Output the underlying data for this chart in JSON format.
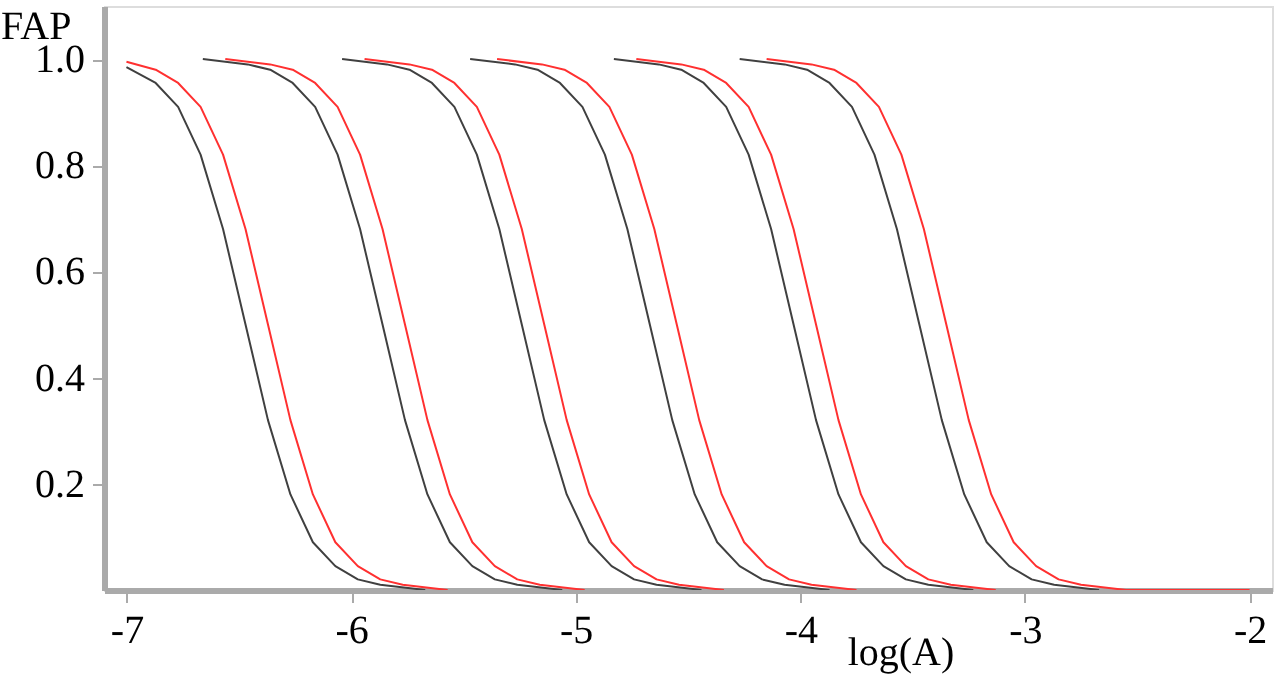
{
  "chart_data": {
    "type": "line",
    "xlabel": "log(A)",
    "ylabel": "FAP",
    "xlim": [
      -7.1,
      -1.9
    ],
    "ylim": [
      0,
      1.1
    ],
    "xticks": [
      -7,
      -6,
      -5,
      -4,
      -3,
      -2
    ],
    "yticks": [
      {
        "value": 0.2,
        "label": "0.2"
      },
      {
        "value": 0.4,
        "label": "0.4"
      },
      {
        "value": 0.6,
        "label": "0.6"
      },
      {
        "value": 0.8,
        "label": "0.8"
      },
      {
        "value": 1,
        "label": "1.0"
      }
    ],
    "grid": false,
    "marker": "none",
    "line_style": "solid",
    "series": [
      {
        "color": "#404040",
        "x": [
          -7,
          -6.87,
          -6.77,
          -6.67,
          -6.57,
          -6.47,
          -6.37,
          -6.27,
          -6.17,
          -6.07,
          -5.97,
          -5.87,
          -5.67
        ],
        "values": [
          0.985,
          0.955,
          0.91,
          0.82,
          0.68,
          0.5,
          0.32,
          0.18,
          0.09,
          0.045,
          0.02,
          0.01,
          0
        ]
      },
      {
        "color": "#ff3030",
        "x": [
          -7,
          -6.87,
          -6.77,
          -6.67,
          -6.57,
          -6.47,
          -6.37,
          -6.27,
          -6.17,
          -6.07,
          -5.97,
          -5.87,
          -5.77,
          -5.57
        ],
        "values": [
          0.995,
          0.98,
          0.955,
          0.91,
          0.82,
          0.68,
          0.5,
          0.32,
          0.18,
          0.09,
          0.045,
          0.02,
          0.01,
          0
        ]
      },
      {
        "color": "#404040",
        "x": [
          -6.66,
          -6.46,
          -6.36,
          -6.26,
          -6.16,
          -6.06,
          -5.96,
          -5.86,
          -5.76,
          -5.66,
          -5.56,
          -5.46,
          -5.36,
          -5.26,
          -5.06
        ],
        "values": [
          1,
          0.99,
          0.98,
          0.955,
          0.91,
          0.82,
          0.68,
          0.5,
          0.32,
          0.18,
          0.09,
          0.045,
          0.02,
          0.01,
          0
        ]
      },
      {
        "color": "#ff3030",
        "x": [
          -6.56,
          -6.36,
          -6.26,
          -6.16,
          -6.06,
          -5.96,
          -5.86,
          -5.76,
          -5.66,
          -5.56,
          -5.46,
          -5.36,
          -5.26,
          -5.16,
          -4.96
        ],
        "values": [
          1,
          0.99,
          0.98,
          0.955,
          0.91,
          0.82,
          0.68,
          0.5,
          0.32,
          0.18,
          0.09,
          0.045,
          0.02,
          0.01,
          0
        ]
      },
      {
        "color": "#404040",
        "x": [
          -6.04,
          -5.84,
          -5.74,
          -5.64,
          -5.54,
          -5.44,
          -5.34,
          -5.24,
          -5.14,
          -5.04,
          -4.94,
          -4.84,
          -4.74,
          -4.64,
          -4.44
        ],
        "values": [
          1,
          0.99,
          0.98,
          0.955,
          0.91,
          0.82,
          0.68,
          0.5,
          0.32,
          0.18,
          0.09,
          0.045,
          0.02,
          0.01,
          0
        ]
      },
      {
        "color": "#ff3030",
        "x": [
          -5.94,
          -5.74,
          -5.64,
          -5.54,
          -5.44,
          -5.34,
          -5.24,
          -5.14,
          -5.04,
          -4.94,
          -4.84,
          -4.74,
          -4.64,
          -4.54,
          -4.34
        ],
        "values": [
          1,
          0.99,
          0.98,
          0.955,
          0.91,
          0.82,
          0.68,
          0.5,
          0.32,
          0.18,
          0.09,
          0.045,
          0.02,
          0.01,
          0
        ]
      },
      {
        "color": "#404040",
        "x": [
          -5.47,
          -5.27,
          -5.17,
          -5.07,
          -4.97,
          -4.87,
          -4.77,
          -4.67,
          -4.57,
          -4.47,
          -4.37,
          -4.27,
          -4.17,
          -4.07,
          -3.87
        ],
        "values": [
          1,
          0.99,
          0.98,
          0.955,
          0.91,
          0.82,
          0.68,
          0.5,
          0.32,
          0.18,
          0.09,
          0.045,
          0.02,
          0.01,
          0
        ]
      },
      {
        "color": "#ff3030",
        "x": [
          -5.35,
          -5.15,
          -5.05,
          -4.95,
          -4.85,
          -4.75,
          -4.65,
          -4.55,
          -4.45,
          -4.35,
          -4.25,
          -4.15,
          -4.05,
          -3.95,
          -3.75
        ],
        "values": [
          1,
          0.99,
          0.98,
          0.955,
          0.91,
          0.82,
          0.68,
          0.5,
          0.32,
          0.18,
          0.09,
          0.045,
          0.02,
          0.01,
          0
        ]
      },
      {
        "color": "#404040",
        "x": [
          -4.83,
          -4.63,
          -4.53,
          -4.43,
          -4.33,
          -4.23,
          -4.13,
          -4.03,
          -3.93,
          -3.83,
          -3.73,
          -3.63,
          -3.53,
          -3.43,
          -3.23
        ],
        "values": [
          1,
          0.99,
          0.98,
          0.955,
          0.91,
          0.82,
          0.68,
          0.5,
          0.32,
          0.18,
          0.09,
          0.045,
          0.02,
          0.01,
          0
        ]
      },
      {
        "color": "#ff3030",
        "x": [
          -4.73,
          -4.53,
          -4.43,
          -4.33,
          -4.23,
          -4.13,
          -4.03,
          -3.93,
          -3.83,
          -3.73,
          -3.63,
          -3.53,
          -3.43,
          -3.33,
          -3.13
        ],
        "values": [
          1,
          0.99,
          0.98,
          0.955,
          0.91,
          0.82,
          0.68,
          0.5,
          0.32,
          0.18,
          0.09,
          0.045,
          0.02,
          0.01,
          0
        ]
      },
      {
        "color": "#404040",
        "x": [
          -4.27,
          -4.07,
          -3.97,
          -3.87,
          -3.77,
          -3.67,
          -3.57,
          -3.47,
          -3.37,
          -3.27,
          -3.17,
          -3.07,
          -2.97,
          -2.87,
          -2.67
        ],
        "values": [
          1,
          0.99,
          0.98,
          0.955,
          0.91,
          0.82,
          0.68,
          0.5,
          0.32,
          0.18,
          0.09,
          0.045,
          0.02,
          0.01,
          0
        ]
      },
      {
        "color": "#ff3030",
        "x": [
          -4.15,
          -3.95,
          -3.85,
          -3.75,
          -3.65,
          -3.55,
          -3.45,
          -3.35,
          -3.25,
          -3.15,
          -3.05,
          -2.95,
          -2.85,
          -2.75,
          -2.55,
          -2
        ],
        "values": [
          1,
          0.99,
          0.98,
          0.955,
          0.91,
          0.82,
          0.68,
          0.5,
          0.32,
          0.18,
          0.09,
          0.045,
          0.02,
          0.01,
          0,
          0
        ]
      }
    ]
  }
}
